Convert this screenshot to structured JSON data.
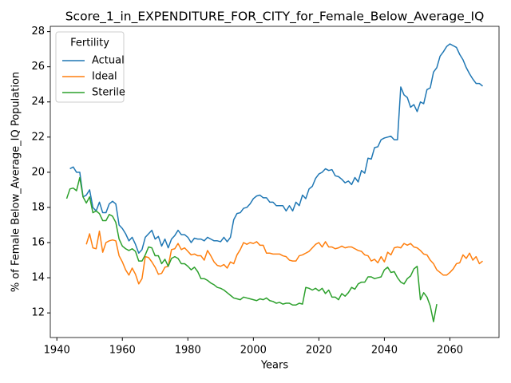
{
  "chart_data": {
    "type": "line",
    "title": "Score_1_in_EXPENDITURE_FOR_CITY_for_Female_Below_Average_IQ",
    "x_label": "Years",
    "y_label": "% of Female Below_Average_IQ Population",
    "legend_title": "Fertility",
    "legend_position": "upper left",
    "xlim": [
      1938,
      2075
    ],
    "ylim": [
      10.6,
      28.3
    ],
    "xticks": [
      1940,
      1960,
      1980,
      2000,
      2020,
      2040,
      2060
    ],
    "yticks": [
      12,
      14,
      16,
      18,
      20,
      22,
      24,
      26,
      28
    ],
    "x": [
      1943,
      1944,
      1945,
      1946,
      1947,
      1948,
      1949,
      1950,
      1951,
      1952,
      1953,
      1954,
      1955,
      1956,
      1957,
      1958,
      1959,
      1960,
      1961,
      1962,
      1963,
      1964,
      1965,
      1966,
      1967,
      1968,
      1969,
      1970,
      1971,
      1972,
      1973,
      1974,
      1975,
      1976,
      1977,
      1978,
      1979,
      1980,
      1981,
      1982,
      1983,
      1984,
      1985,
      1986,
      1987,
      1988,
      1989,
      1990,
      1991,
      1992,
      1993,
      1994,
      1995,
      1996,
      1997,
      1998,
      1999,
      2000,
      2001,
      2002,
      2003,
      2004,
      2005,
      2006,
      2007,
      2008,
      2009,
      2010,
      2011,
      2012,
      2013,
      2014,
      2015,
      2016,
      2017,
      2018,
      2019,
      2020,
      2021,
      2022,
      2023,
      2024,
      2025,
      2026,
      2027,
      2028,
      2029,
      2030,
      2031,
      2032,
      2033,
      2034,
      2035,
      2036,
      2037,
      2038,
      2039,
      2040,
      2041,
      2042,
      2043,
      2044,
      2045,
      2046,
      2047,
      2048,
      2049,
      2050,
      2051,
      2052,
      2053,
      2054,
      2055,
      2056,
      2057,
      2058,
      2059,
      2060,
      2061,
      2062,
      2063,
      2064,
      2065,
      2066,
      2067,
      2068,
      2069,
      2070
    ],
    "series": [
      {
        "name": "Actual",
        "color": "#1f77b4",
        "values": [
          null,
          20.2,
          20.3,
          20.0,
          20.0,
          18.6,
          18.7,
          19.0,
          18.0,
          17.8,
          18.3,
          17.7,
          17.7,
          18.2,
          18.35,
          18.2,
          17.0,
          16.8,
          16.5,
          16.1,
          16.3,
          15.9,
          15.4,
          15.6,
          16.3,
          16.5,
          16.7,
          16.2,
          16.35,
          15.8,
          16.2,
          15.7,
          16.2,
          16.4,
          16.7,
          16.45,
          16.45,
          16.3,
          16.0,
          16.25,
          16.2,
          16.2,
          16.1,
          16.3,
          16.2,
          16.1,
          16.1,
          16.05,
          16.3,
          16.05,
          16.3,
          17.3,
          17.65,
          17.7,
          17.95,
          18.0,
          18.2,
          18.5,
          18.65,
          18.7,
          18.55,
          18.55,
          18.3,
          18.3,
          18.1,
          18.1,
          18.1,
          17.8,
          18.1,
          17.8,
          18.3,
          18.1,
          18.7,
          18.5,
          19.05,
          19.2,
          19.65,
          19.9,
          20.0,
          20.2,
          20.1,
          20.15,
          19.8,
          19.75,
          19.6,
          19.4,
          19.5,
          19.3,
          19.7,
          19.45,
          20.1,
          19.95,
          20.8,
          20.75,
          21.4,
          21.45,
          21.85,
          21.95,
          22.0,
          22.05,
          21.85,
          21.85,
          24.85,
          24.4,
          24.25,
          23.7,
          23.85,
          23.45,
          24.0,
          23.9,
          24.7,
          24.8,
          25.7,
          25.95,
          26.6,
          26.85,
          27.15,
          27.3,
          27.2,
          27.1,
          26.7,
          26.4,
          25.95,
          25.6,
          25.3,
          25.05,
          25.05,
          24.9
        ]
      },
      {
        "name": "Ideal",
        "color": "#ff7f0e",
        "values": [
          null,
          null,
          null,
          null,
          null,
          null,
          15.9,
          16.5,
          15.7,
          15.65,
          16.65,
          15.45,
          16.0,
          16.1,
          16.15,
          16.1,
          15.25,
          14.9,
          14.45,
          14.15,
          14.55,
          14.2,
          13.65,
          13.95,
          15.2,
          15.15,
          14.9,
          14.6,
          14.2,
          14.25,
          14.6,
          14.65,
          15.6,
          15.65,
          15.95,
          15.6,
          15.7,
          15.5,
          15.3,
          15.35,
          15.25,
          15.25,
          15.0,
          15.55,
          15.25,
          14.9,
          14.7,
          14.65,
          14.75,
          14.55,
          14.9,
          14.8,
          15.3,
          15.6,
          16.0,
          15.9,
          16.0,
          15.95,
          16.05,
          15.85,
          15.85,
          15.4,
          15.4,
          15.35,
          15.35,
          15.35,
          15.25,
          15.2,
          15.0,
          14.95,
          14.95,
          15.25,
          15.3,
          15.4,
          15.5,
          15.7,
          15.9,
          16.0,
          15.75,
          16.05,
          15.75,
          15.75,
          15.65,
          15.7,
          15.8,
          15.7,
          15.75,
          15.75,
          15.65,
          15.55,
          15.5,
          15.3,
          15.25,
          14.95,
          15.05,
          14.85,
          15.2,
          14.9,
          15.45,
          15.3,
          15.7,
          15.75,
          15.7,
          15.95,
          15.85,
          15.95,
          15.75,
          15.7,
          15.55,
          15.35,
          15.3,
          15.0,
          14.8,
          14.45,
          14.3,
          14.15,
          14.15,
          14.3,
          14.5,
          14.8,
          14.85,
          15.3,
          15.1,
          15.4,
          15.0,
          15.2,
          14.8,
          14.95
        ]
      },
      {
        "name": "Sterile",
        "color": "#2ca02c",
        "values": [
          18.5,
          19.05,
          19.1,
          18.95,
          19.7,
          18.6,
          18.25,
          18.6,
          17.7,
          17.8,
          17.65,
          17.25,
          17.25,
          17.6,
          17.5,
          17.15,
          16.2,
          15.8,
          15.65,
          15.55,
          15.65,
          15.5,
          14.95,
          14.95,
          15.3,
          15.75,
          15.7,
          15.25,
          15.25,
          14.8,
          15.05,
          14.65,
          15.1,
          15.2,
          15.1,
          14.8,
          14.8,
          14.65,
          14.45,
          14.6,
          14.35,
          13.95,
          13.95,
          13.85,
          13.7,
          13.6,
          13.45,
          13.4,
          13.3,
          13.15,
          13.0,
          12.85,
          12.8,
          12.75,
          12.9,
          12.85,
          12.8,
          12.75,
          12.7,
          12.8,
          12.75,
          12.85,
          12.7,
          12.65,
          12.55,
          12.6,
          12.5,
          12.55,
          12.55,
          12.45,
          12.45,
          12.55,
          12.5,
          13.45,
          13.4,
          13.3,
          13.4,
          13.25,
          13.4,
          13.1,
          13.3,
          12.9,
          12.9,
          12.75,
          13.1,
          12.95,
          13.15,
          13.45,
          13.35,
          13.65,
          13.75,
          13.75,
          14.05,
          14.05,
          13.95,
          14.0,
          14.05,
          14.45,
          14.6,
          14.3,
          14.35,
          14.0,
          13.75,
          13.65,
          13.95,
          14.1,
          14.5,
          14.65,
          12.75,
          13.15,
          12.9,
          12.4,
          11.5,
          12.5,
          null,
          null,
          null,
          null,
          null,
          null,
          null,
          null,
          null,
          null,
          null,
          null,
          null,
          null
        ]
      }
    ]
  }
}
